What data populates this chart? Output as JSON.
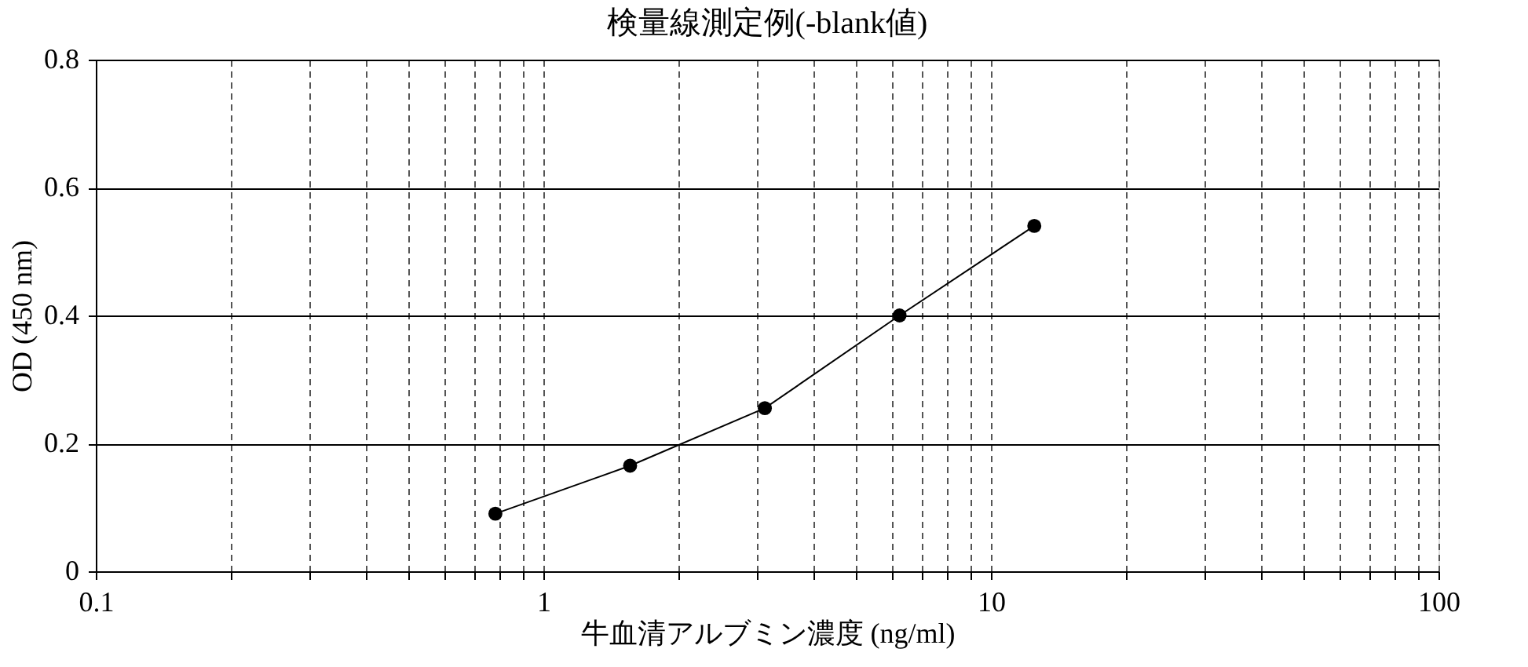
{
  "chart_data": {
    "type": "line",
    "title": "検量線測定例(-blank値)",
    "xlabel": "牛血清アルブミン濃度 (ng/ml)",
    "ylabel": "OD (450 nm)",
    "x": [
      0.78125,
      1.5625,
      3.125,
      6.25,
      12.5
    ],
    "series": [
      {
        "color": "#000000",
        "values": [
          0.09,
          0.165,
          0.255,
          0.4,
          0.54
        ]
      }
    ],
    "log": "x",
    "xlim": [
      0.1,
      100
    ],
    "xticks": [
      0.1,
      {
        "value": 0.2,
        "label": null
      },
      {
        "value": 0.3,
        "label": null
      },
      {
        "value": 0.4,
        "label": null
      },
      {
        "value": 0.5,
        "label": null
      },
      {
        "value": 0.6,
        "label": null
      },
      {
        "value": 0.7,
        "label": null
      },
      {
        "value": 0.8,
        "label": null
      },
      {
        "value": 0.9,
        "label": null
      },
      1,
      {
        "value": 2,
        "label": null
      },
      {
        "value": 3,
        "label": null
      },
      {
        "value": 4,
        "label": null
      },
      {
        "value": 5,
        "label": null
      },
      {
        "value": 6,
        "label": null
      },
      {
        "value": 7,
        "label": null
      },
      {
        "value": 8,
        "label": null
      },
      {
        "value": 9,
        "label": null
      },
      10,
      {
        "value": 20,
        "label": null
      },
      {
        "value": 30,
        "label": null
      },
      {
        "value": 40,
        "label": null
      },
      {
        "value": 50,
        "label": null
      },
      {
        "value": 60,
        "label": null
      },
      {
        "value": 70,
        "label": null
      },
      {
        "value": 80,
        "label": null
      },
      {
        "value": 90,
        "label": null
      },
      100
    ],
    "ylim": [
      0,
      0.8
    ],
    "yticks": [
      0,
      0.2,
      0.4,
      0.6,
      0.8
    ],
    "grid": true,
    "marker": "circle",
    "line_style": "solid"
  }
}
